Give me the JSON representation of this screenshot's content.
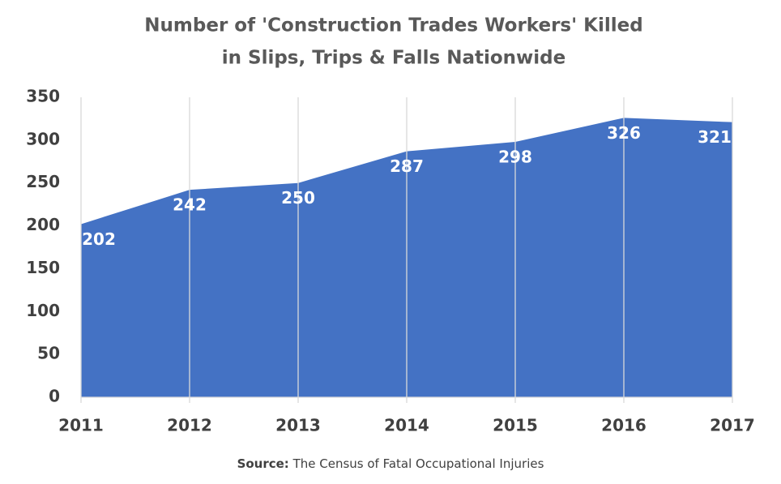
{
  "chart_data": {
    "type": "area",
    "title": [
      "Number of 'Construction Trades Workers' Killed",
      "in Slips, Trips & Falls Nationwide"
    ],
    "x": [
      2011,
      2012,
      2013,
      2014,
      2015,
      2016,
      2017
    ],
    "values": [
      202,
      242,
      250,
      287,
      298,
      326,
      321
    ],
    "color": "#4472c4",
    "xlim": [
      2011,
      2017
    ],
    "xticks": [
      2011,
      2012,
      2013,
      2014,
      2015,
      2016,
      2017
    ],
    "ylim": [
      0,
      350
    ],
    "yticks": [
      0,
      50,
      100,
      150,
      200,
      250,
      300,
      350
    ],
    "grid": "x",
    "source_label": "Source:",
    "source_text": "The Census of Fatal Occupational Injuries"
  }
}
